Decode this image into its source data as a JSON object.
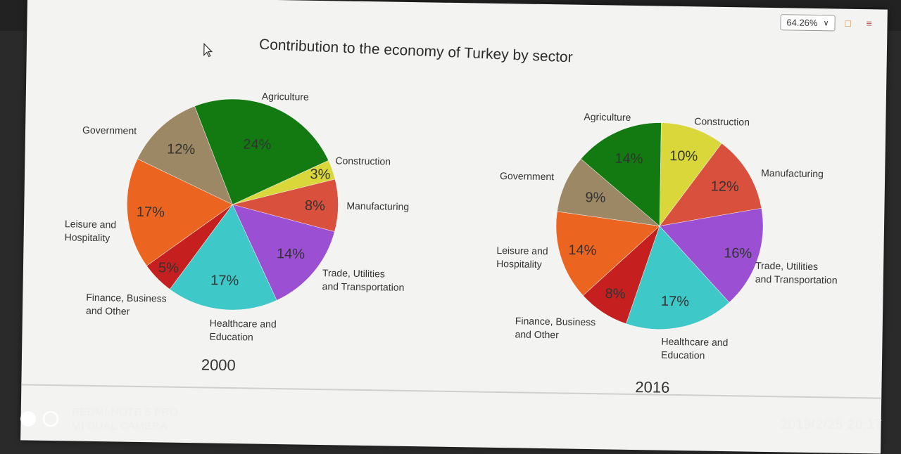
{
  "toolbar": {
    "zoom": "64.26%",
    "icons": [
      "document-icon",
      "menu-icon"
    ]
  },
  "chart_data": [
    {
      "type": "pie",
      "title": "Contribution to the economy of Turkey by sector",
      "year_label": "2000",
      "slices": [
        {
          "label": "Agriculture",
          "value": 24,
          "display": "24%",
          "color": "#137a12"
        },
        {
          "label": "Construction",
          "value": 3,
          "display": "3%",
          "color": "#d9d73a"
        },
        {
          "label": "Manufacturing",
          "value": 8,
          "display": "8%",
          "color": "#d9503c"
        },
        {
          "label": "Trade, Utilities and Transportation",
          "value": 14,
          "display": "14%",
          "color": "#9b4fd3"
        },
        {
          "label": "Healthcare and Education",
          "value": 17,
          "display": "17%",
          "color": "#3ec8c8"
        },
        {
          "label": "Finance, Business and Other",
          "value": 5,
          "display": "5%",
          "color": "#c61f1f"
        },
        {
          "label": "Leisure and Hospitality",
          "value": 17,
          "display": "17%",
          "color": "#ec6520"
        },
        {
          "label": "Government",
          "value": 12,
          "display": "12%",
          "color": "#9c8864"
        }
      ]
    },
    {
      "type": "pie",
      "title": "",
      "year_label": "2016",
      "slices": [
        {
          "label": "Construction",
          "value": 10,
          "display": "10%",
          "color": "#d9d73a"
        },
        {
          "label": "Manufacturing",
          "value": 12,
          "display": "12%",
          "color": "#d9503c"
        },
        {
          "label": "Trade, Utilities and Transportation",
          "value": 16,
          "display": "16%",
          "color": "#9b4fd3"
        },
        {
          "label": "Healthcare and Education",
          "value": 17,
          "display": "17%",
          "color": "#3ec8c8"
        },
        {
          "label": "Finance, Business and Other",
          "value": 8,
          "display": "8%",
          "color": "#c61f1f"
        },
        {
          "label": "Leisure and Hospitality",
          "value": 14,
          "display": "14%",
          "color": "#ec6520"
        },
        {
          "label": "Government",
          "value": 9,
          "display": "9%",
          "color": "#9c8864"
        },
        {
          "label": "Agriculture",
          "value": 14,
          "display": "14%",
          "color": "#137a12"
        }
      ]
    }
  ],
  "camera_overlay": {
    "device_line1": "REDMI NOTE 5 PRO",
    "device_line2": "MI DUAL CAMERA",
    "timestamp": "2019/2/25  20:17"
  }
}
